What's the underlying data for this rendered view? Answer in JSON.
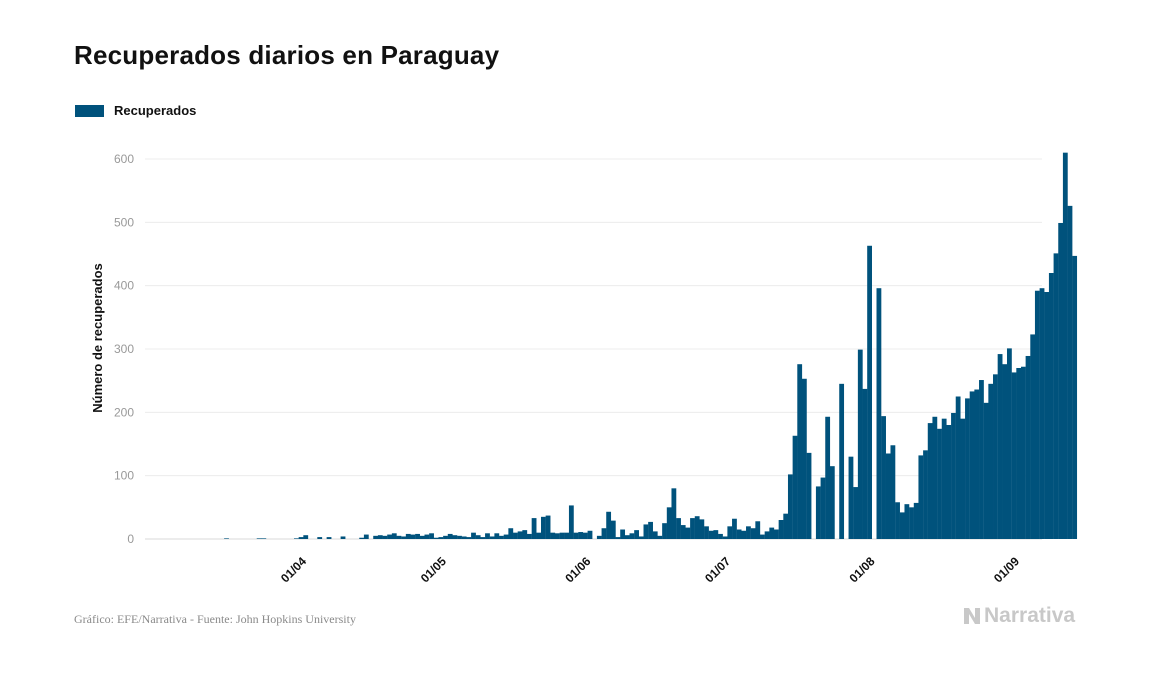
{
  "title": "Recuperados diarios en Paraguay",
  "legend": {
    "label": "Recuperados",
    "color": "#00527c"
  },
  "footer": {
    "source": "Gráfico: EFE/Narrativa - Fuente: John Hopkins University",
    "brand": "Narrativa"
  },
  "chart_data": {
    "type": "bar",
    "title": "Recuperados diarios en Paraguay",
    "ylabel": "Número de recuperados",
    "xlabel": "",
    "ylim": [
      0,
      660
    ],
    "yticks": [
      0,
      100,
      200,
      300,
      400,
      500,
      600
    ],
    "grid": true,
    "legend_position": "top-left",
    "x_start": "2020-03-07",
    "x_end": "2020-09-16",
    "xticks": [
      {
        "date": "2020-04-01",
        "label": "01/04"
      },
      {
        "date": "2020-05-01",
        "label": "01/05"
      },
      {
        "date": "2020-06-01",
        "label": "01/06"
      },
      {
        "date": "2020-07-01",
        "label": "01/07"
      },
      {
        "date": "2020-08-01",
        "label": "01/08"
      },
      {
        "date": "2020-09-01",
        "label": "01/09"
      }
    ],
    "series": [
      {
        "name": "Recuperados",
        "color": "#00527c",
        "data": [
          [
            "2020-03-07",
            0
          ],
          [
            "2020-03-08",
            0
          ],
          [
            "2020-03-09",
            0
          ],
          [
            "2020-03-10",
            0
          ],
          [
            "2020-03-11",
            0
          ],
          [
            "2020-03-12",
            0
          ],
          [
            "2020-03-13",
            0
          ],
          [
            "2020-03-14",
            0
          ],
          [
            "2020-03-15",
            0
          ],
          [
            "2020-03-16",
            1
          ],
          [
            "2020-03-17",
            0
          ],
          [
            "2020-03-18",
            0
          ],
          [
            "2020-03-19",
            0
          ],
          [
            "2020-03-20",
            0
          ],
          [
            "2020-03-21",
            0
          ],
          [
            "2020-03-22",
            0
          ],
          [
            "2020-03-23",
            1
          ],
          [
            "2020-03-24",
            1
          ],
          [
            "2020-03-25",
            0
          ],
          [
            "2020-03-26",
            0
          ],
          [
            "2020-03-27",
            0
          ],
          [
            "2020-03-28",
            0
          ],
          [
            "2020-03-29",
            0
          ],
          [
            "2020-03-30",
            0
          ],
          [
            "2020-03-31",
            1
          ],
          [
            "2020-04-01",
            3
          ],
          [
            "2020-04-02",
            6
          ],
          [
            "2020-04-03",
            0
          ],
          [
            "2020-04-04",
            0
          ],
          [
            "2020-04-05",
            3
          ],
          [
            "2020-04-06",
            0
          ],
          [
            "2020-04-07",
            3
          ],
          [
            "2020-04-08",
            0
          ],
          [
            "2020-04-09",
            0
          ],
          [
            "2020-04-10",
            4
          ],
          [
            "2020-04-11",
            0
          ],
          [
            "2020-04-12",
            0
          ],
          [
            "2020-04-13",
            0
          ],
          [
            "2020-04-14",
            2
          ],
          [
            "2020-04-15",
            7
          ],
          [
            "2020-04-16",
            0
          ],
          [
            "2020-04-17",
            5
          ],
          [
            "2020-04-18",
            6
          ],
          [
            "2020-04-19",
            5
          ],
          [
            "2020-04-20",
            7
          ],
          [
            "2020-04-21",
            9
          ],
          [
            "2020-04-22",
            5
          ],
          [
            "2020-04-23",
            4
          ],
          [
            "2020-04-24",
            8
          ],
          [
            "2020-04-25",
            7
          ],
          [
            "2020-04-26",
            8
          ],
          [
            "2020-04-27",
            5
          ],
          [
            "2020-04-28",
            7
          ],
          [
            "2020-04-29",
            9
          ],
          [
            "2020-04-30",
            2
          ],
          [
            "2020-05-01",
            3
          ],
          [
            "2020-05-02",
            5
          ],
          [
            "2020-05-03",
            8
          ],
          [
            "2020-05-04",
            6
          ],
          [
            "2020-05-05",
            5
          ],
          [
            "2020-05-06",
            4
          ],
          [
            "2020-05-07",
            3
          ],
          [
            "2020-05-08",
            10
          ],
          [
            "2020-05-09",
            6
          ],
          [
            "2020-05-10",
            3
          ],
          [
            "2020-05-11",
            9
          ],
          [
            "2020-05-12",
            4
          ],
          [
            "2020-05-13",
            9
          ],
          [
            "2020-05-14",
            5
          ],
          [
            "2020-05-15",
            7
          ],
          [
            "2020-05-16",
            17
          ],
          [
            "2020-05-17",
            10
          ],
          [
            "2020-05-18",
            12
          ],
          [
            "2020-05-19",
            14
          ],
          [
            "2020-05-20",
            8
          ],
          [
            "2020-05-21",
            33
          ],
          [
            "2020-05-22",
            10
          ],
          [
            "2020-05-23",
            35
          ],
          [
            "2020-05-24",
            37
          ],
          [
            "2020-05-25",
            10
          ],
          [
            "2020-05-26",
            9
          ],
          [
            "2020-05-27",
            10
          ],
          [
            "2020-05-28",
            10
          ],
          [
            "2020-05-29",
            53
          ],
          [
            "2020-05-30",
            10
          ],
          [
            "2020-05-31",
            11
          ],
          [
            "2020-06-01",
            10
          ],
          [
            "2020-06-02",
            13
          ],
          [
            "2020-06-03",
            0
          ],
          [
            "2020-06-04",
            5
          ],
          [
            "2020-06-05",
            17
          ],
          [
            "2020-06-06",
            43
          ],
          [
            "2020-06-07",
            29
          ],
          [
            "2020-06-08",
            3
          ],
          [
            "2020-06-09",
            15
          ],
          [
            "2020-06-10",
            6
          ],
          [
            "2020-06-11",
            9
          ],
          [
            "2020-06-12",
            14
          ],
          [
            "2020-06-13",
            4
          ],
          [
            "2020-06-14",
            23
          ],
          [
            "2020-06-15",
            27
          ],
          [
            "2020-06-16",
            12
          ],
          [
            "2020-06-17",
            5
          ],
          [
            "2020-06-18",
            25
          ],
          [
            "2020-06-19",
            50
          ],
          [
            "2020-06-20",
            80
          ],
          [
            "2020-06-21",
            33
          ],
          [
            "2020-06-22",
            22
          ],
          [
            "2020-06-23",
            18
          ],
          [
            "2020-06-24",
            33
          ],
          [
            "2020-06-25",
            36
          ],
          [
            "2020-06-26",
            31
          ],
          [
            "2020-06-27",
            20
          ],
          [
            "2020-06-28",
            13
          ],
          [
            "2020-06-29",
            14
          ],
          [
            "2020-06-30",
            8
          ],
          [
            "2020-07-01",
            4
          ],
          [
            "2020-07-02",
            20
          ],
          [
            "2020-07-03",
            32
          ],
          [
            "2020-07-04",
            15
          ],
          [
            "2020-07-05",
            13
          ],
          [
            "2020-07-06",
            20
          ],
          [
            "2020-07-07",
            17
          ],
          [
            "2020-07-08",
            28
          ],
          [
            "2020-07-09",
            7
          ],
          [
            "2020-07-10",
            12
          ],
          [
            "2020-07-11",
            18
          ],
          [
            "2020-07-12",
            15
          ],
          [
            "2020-07-13",
            30
          ],
          [
            "2020-07-14",
            40
          ],
          [
            "2020-07-15",
            102
          ],
          [
            "2020-07-16",
            163
          ],
          [
            "2020-07-17",
            276
          ],
          [
            "2020-07-18",
            253
          ],
          [
            "2020-07-19",
            136
          ],
          [
            "2020-07-20",
            0
          ],
          [
            "2020-07-21",
            83
          ],
          [
            "2020-07-22",
            97
          ],
          [
            "2020-07-23",
            193
          ],
          [
            "2020-07-24",
            115
          ],
          [
            "2020-07-25",
            0
          ],
          [
            "2020-07-26",
            245
          ],
          [
            "2020-07-27",
            0
          ],
          [
            "2020-07-28",
            130
          ],
          [
            "2020-07-29",
            82
          ],
          [
            "2020-07-30",
            299
          ],
          [
            "2020-07-31",
            237
          ],
          [
            "2020-08-01",
            463
          ],
          [
            "2020-08-02",
            0
          ],
          [
            "2020-08-03",
            396
          ],
          [
            "2020-08-04",
            194
          ],
          [
            "2020-08-05",
            135
          ],
          [
            "2020-08-06",
            148
          ],
          [
            "2020-08-07",
            58
          ],
          [
            "2020-08-08",
            42
          ],
          [
            "2020-08-09",
            55
          ],
          [
            "2020-08-10",
            50
          ],
          [
            "2020-08-11",
            57
          ],
          [
            "2020-08-12",
            132
          ],
          [
            "2020-08-13",
            140
          ],
          [
            "2020-08-14",
            183
          ],
          [
            "2020-08-15",
            193
          ],
          [
            "2020-08-16",
            174
          ],
          [
            "2020-08-17",
            190
          ],
          [
            "2020-08-18",
            180
          ],
          [
            "2020-08-19",
            199
          ],
          [
            "2020-08-20",
            225
          ],
          [
            "2020-08-21",
            190
          ],
          [
            "2020-08-22",
            222
          ],
          [
            "2020-08-23",
            233
          ],
          [
            "2020-08-24",
            236
          ],
          [
            "2020-08-25",
            251
          ],
          [
            "2020-08-26",
            215
          ],
          [
            "2020-08-27",
            245
          ],
          [
            "2020-08-28",
            260
          ],
          [
            "2020-08-29",
            292
          ],
          [
            "2020-08-30",
            276
          ],
          [
            "2020-08-31",
            301
          ],
          [
            "2020-09-01",
            263
          ],
          [
            "2020-09-02",
            270
          ],
          [
            "2020-09-03",
            272
          ],
          [
            "2020-09-04",
            289
          ],
          [
            "2020-09-05",
            323
          ],
          [
            "2020-09-06",
            392
          ],
          [
            "2020-09-07",
            396
          ],
          [
            "2020-09-08",
            390
          ],
          [
            "2020-09-09",
            420
          ],
          [
            "2020-09-10",
            451
          ],
          [
            "2020-09-11",
            499
          ],
          [
            "2020-09-12",
            610
          ],
          [
            "2020-09-13",
            526
          ],
          [
            "2020-09-14",
            447
          ]
        ]
      }
    ]
  }
}
